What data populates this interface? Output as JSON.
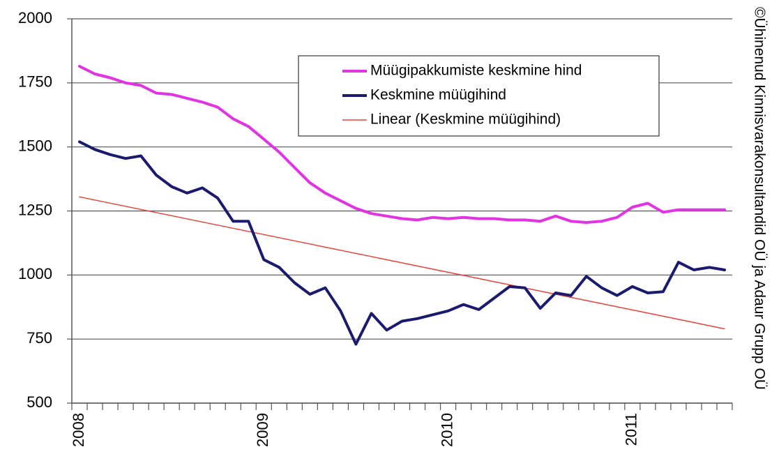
{
  "chart_data": {
    "type": "line",
    "side_note": "©Ühinenud Kinnisvarakonsultandid OÜ ja Adaur Grupp OÜ",
    "categories": [
      "2008",
      null,
      null,
      null,
      null,
      null,
      null,
      null,
      null,
      null,
      null,
      null,
      "2009",
      null,
      null,
      null,
      null,
      null,
      null,
      null,
      null,
      null,
      null,
      null,
      "2010",
      null,
      null,
      null,
      null,
      null,
      null,
      null,
      null,
      null,
      null,
      null,
      "2011",
      null,
      null,
      null,
      null,
      null,
      null
    ],
    "series": [
      {
        "name": "Müügipakkumiste keskmine hind",
        "color": "#e233e2",
        "width": 4,
        "values": [
          1815,
          1785,
          1770,
          1750,
          1740,
          1710,
          1705,
          1690,
          1675,
          1655,
          1610,
          1580,
          1530,
          1480,
          1420,
          1360,
          1320,
          1290,
          1260,
          1240,
          1230,
          1220,
          1215,
          1225,
          1220,
          1225,
          1220,
          1220,
          1215,
          1215,
          1210,
          1230,
          1210,
          1205,
          1210,
          1225,
          1265,
          1280,
          1245,
          1255,
          1255,
          1255,
          1255
        ]
      },
      {
        "name": "Keskmine müügihind",
        "color": "#1a1a6e",
        "width": 4,
        "values": [
          1520,
          1490,
          1470,
          1455,
          1465,
          1390,
          1345,
          1320,
          1340,
          1300,
          1210,
          1210,
          1060,
          1030,
          970,
          925,
          950,
          860,
          730,
          850,
          785,
          820,
          830,
          845,
          860,
          885,
          865,
          910,
          955,
          950,
          870,
          930,
          920,
          995,
          950,
          920,
          955,
          930,
          935,
          1050,
          1020,
          1030,
          1020
        ]
      },
      {
        "name": "Linear (Keskmine müügihind)",
        "color": "#e8413a",
        "width": 1.5,
        "values": [
          1305,
          1292.7,
          1280.5,
          1268.2,
          1256.0,
          1243.7,
          1231.4,
          1219.2,
          1206.9,
          1194.7,
          1182.4,
          1170.1,
          1157.9,
          1145.6,
          1133.4,
          1121.1,
          1108.8,
          1096.6,
          1084.3,
          1072.1,
          1059.8,
          1047.5,
          1035.3,
          1023.0,
          1010.8,
          998.5,
          986.2,
          974.0,
          961.7,
          949.5,
          937.2,
          924.9,
          912.7,
          900.4,
          888.2,
          875.9,
          863.6,
          851.4,
          839.1,
          826.9,
          814.6,
          802.3,
          790.0
        ]
      }
    ],
    "ylim": [
      500,
      2000
    ],
    "yticks": [
      500,
      750,
      1000,
      1250,
      1500,
      1750,
      2000
    ],
    "grid": true,
    "legend": "top-right"
  }
}
